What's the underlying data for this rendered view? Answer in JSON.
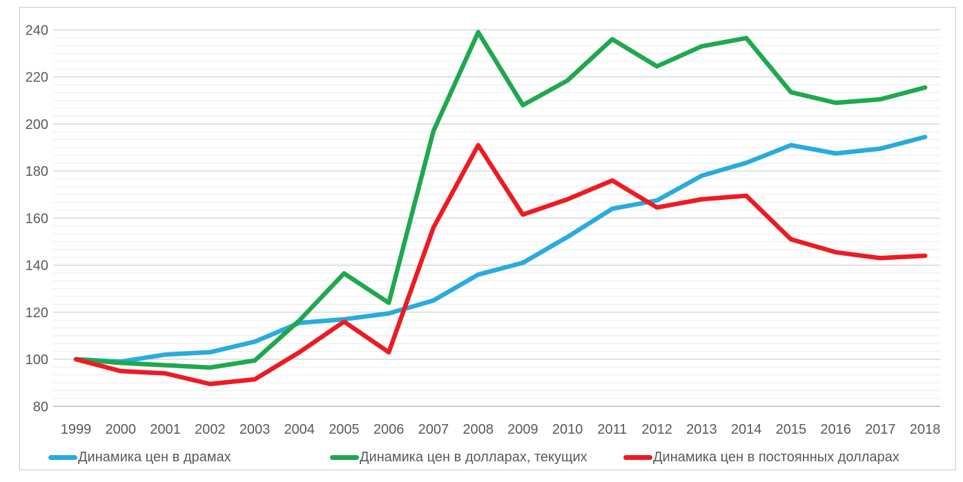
{
  "figure": {
    "background_color": "#FFFFFF",
    "border_color": "#C9C9C9"
  },
  "axis_style": {
    "tick_label_color": "#595959",
    "major_grid_color": "#C6C6C6",
    "minor_grid_color": "#ECECEC",
    "axis_line_color": "#B3B3B3"
  },
  "chart_data": {
    "type": "line",
    "title": "",
    "xlabel": "",
    "ylabel": "",
    "x": [
      1999,
      2000,
      2001,
      2002,
      2003,
      2004,
      2005,
      2006,
      2007,
      2008,
      2009,
      2010,
      2011,
      2012,
      2013,
      2014,
      2015,
      2016,
      2017,
      2018
    ],
    "series": [
      {
        "name": "Динамика цен в драмах",
        "color": "#29ABDE",
        "values": [
          100,
          99,
          102,
          103,
          107.5,
          115.5,
          117,
          119.5,
          125,
          136,
          141,
          152,
          164,
          167.5,
          178,
          183.5,
          191,
          187.5,
          189.5,
          194.5
        ]
      },
      {
        "name": "Динамика цен в долларах, текущих",
        "color": "#1FA84D",
        "values": [
          100,
          98.5,
          97.5,
          96.5,
          99.5,
          116.5,
          136.5,
          124,
          197,
          239,
          208,
          218.5,
          236,
          224.5,
          233,
          236.5,
          213.5,
          209,
          210.5,
          215.5
        ]
      },
      {
        "name": "Динамика цен в постоянных долларах",
        "color": "#EC1B23",
        "values": [
          100,
          95,
          94,
          89.5,
          91.5,
          103,
          116,
          103,
          156,
          191,
          161.5,
          168,
          176,
          164.5,
          168,
          169.5,
          151,
          145.5,
          143,
          144
        ]
      }
    ],
    "ylim": [
      80,
      240
    ],
    "y_ticks": [
      80,
      100,
      120,
      140,
      160,
      180,
      200,
      220,
      240
    ],
    "y_major_unit": 20,
    "y_minor_intervals_per_major": 6,
    "grid": "major+minor horizontal",
    "legend_position": "bottom",
    "draw_order_top_to_bottom": [
      "Динамика цен в постоянных долларах",
      "Динамика цен в долларах, текущих",
      "Динамика цен в драмах"
    ]
  }
}
